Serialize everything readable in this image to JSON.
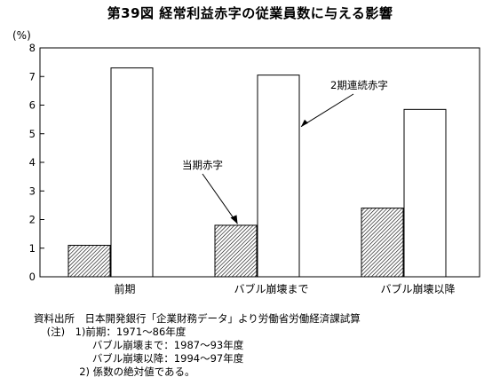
{
  "chart_data": {
    "type": "bar",
    "title": "第39図 経常利益赤字の従業員数に与える影響",
    "ylabel": "(%)",
    "ylim": [
      0,
      8
    ],
    "yticks": [
      0,
      1,
      2,
      3,
      4,
      5,
      6,
      7,
      8
    ],
    "categories": [
      "前期",
      "バブル崩壊まで",
      "バブル崩壊以降"
    ],
    "series": [
      {
        "name": "当期赤字",
        "pattern": "hatched",
        "values": [
          1.1,
          1.8,
          2.4
        ]
      },
      {
        "name": "2期連続赤字",
        "pattern": "white",
        "values": [
          7.3,
          7.05,
          5.85
        ]
      }
    ],
    "annotations": [
      "当期赤字",
      "2期連続赤字"
    ],
    "grid": false
  },
  "notes": {
    "source_label": "資料出所",
    "source_text": "日本開発銀行「企業財務データ」より労働省労働経済課試算",
    "note_label": "(注)",
    "lines": [
      "1)前期：1971～86年度",
      "バブル崩壊まで：1987～93年度",
      "バブル崩壊以降：1994～97年度",
      "2) 係数の絶対値である。"
    ]
  },
  "colors": {
    "axis": "#000000",
    "bar_fill": "#ffffff",
    "hatch": "#000000"
  }
}
